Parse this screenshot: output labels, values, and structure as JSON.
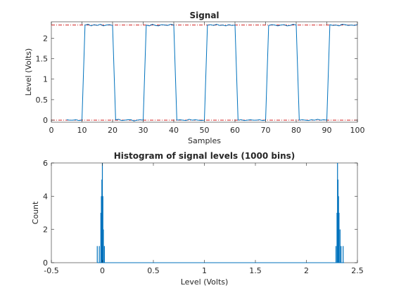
{
  "chart_data": [
    {
      "type": "line",
      "title": "Signal",
      "xlabel": "Samples",
      "ylabel": "Level (Volts)",
      "xlim": [
        0,
        100
      ],
      "ylim": [
        -0.05,
        2.4
      ],
      "xticks": [
        "0",
        "10",
        "20",
        "30",
        "40",
        "50",
        "60",
        "70",
        "80",
        "90",
        "100"
      ],
      "yticks": [
        "0",
        "0.5",
        "1",
        "1.5",
        "2"
      ],
      "grid": false,
      "series": [
        {
          "color": "#0072bd",
          "x": [
            5,
            6,
            7,
            8,
            9,
            10,
            11,
            12,
            13,
            14,
            15,
            16,
            17,
            18,
            19,
            20,
            21,
            22,
            23,
            24,
            25,
            26,
            27,
            28,
            29,
            30,
            31,
            32,
            33,
            34,
            35,
            36,
            37,
            38,
            39,
            40,
            41,
            42,
            43,
            44,
            45,
            46,
            47,
            48,
            49,
            50,
            51,
            52,
            53,
            54,
            55,
            56,
            57,
            58,
            59,
            60,
            61,
            62,
            63,
            64,
            65,
            66,
            67,
            68,
            69,
            70,
            71,
            72,
            73,
            74,
            75,
            76,
            77,
            78,
            79,
            80,
            81,
            82,
            83,
            84,
            85,
            86,
            87,
            88,
            89,
            90,
            91,
            92,
            93,
            94,
            95,
            96,
            97,
            98,
            99,
            100
          ],
          "y": [
            0.01,
            0.0,
            0.0,
            0.01,
            -0.01,
            0.0,
            2.32,
            2.34,
            2.3,
            2.33,
            2.31,
            2.34,
            2.3,
            2.32,
            2.33,
            2.31,
            0.01,
            0.02,
            -0.01,
            0.0,
            0.01,
            0.01,
            -0.02,
            0.0,
            0.01,
            0.0,
            2.32,
            2.3,
            2.34,
            2.31,
            2.3,
            2.33,
            2.32,
            2.31,
            2.34,
            2.32,
            0.0,
            0.01,
            0.0,
            -0.01,
            0.02,
            0.0,
            0.01,
            0.0,
            -0.01,
            0.0,
            2.32,
            2.33,
            2.31,
            2.34,
            2.31,
            2.32,
            2.3,
            2.33,
            2.31,
            2.32,
            0.0,
            0.01,
            -0.01,
            0.0,
            0.01,
            0.0,
            0.0,
            0.01,
            -0.01,
            0.0,
            2.31,
            2.33,
            2.32,
            2.3,
            2.32,
            2.33,
            2.3,
            2.31,
            2.34,
            2.32,
            0.0,
            0.01,
            0.0,
            -0.01,
            0.01,
            0.0,
            0.02,
            0.0,
            0.01,
            0.0,
            2.33,
            2.31,
            2.32,
            2.3,
            2.34,
            2.33,
            2.31,
            2.32,
            2.31,
            2.33
          ]
        }
      ],
      "reference_lines": [
        {
          "y": 2.32,
          "color": "#cc0000",
          "style": "dash-dot"
        },
        {
          "y": 0.0,
          "color": "#cc0000",
          "style": "dash-dot"
        }
      ]
    },
    {
      "type": "histogram",
      "title": "Histogram of signal levels (1000 bins)",
      "xlabel": "Level (Volts)",
      "ylabel": "Count",
      "xlim": [
        -0.5,
        2.5
      ],
      "ylim": [
        0,
        6
      ],
      "xticks": [
        "-0.5",
        "0",
        "0.5",
        "1",
        "1.5",
        "2",
        "2.5"
      ],
      "yticks": [
        "0",
        "2",
        "4",
        "6"
      ],
      "grid": false,
      "color": "#0072bd",
      "bins": [
        {
          "x": -0.05,
          "count": 1
        },
        {
          "x": -0.03,
          "count": 1
        },
        {
          "x": -0.015,
          "count": 3
        },
        {
          "x": -0.01,
          "count": 4
        },
        {
          "x": -0.005,
          "count": 5
        },
        {
          "x": 0.0,
          "count": 6
        },
        {
          "x": 0.005,
          "count": 4
        },
        {
          "x": 0.01,
          "count": 2
        },
        {
          "x": 0.02,
          "count": 1
        },
        {
          "x": 2.29,
          "count": 1
        },
        {
          "x": 2.3,
          "count": 3
        },
        {
          "x": 2.305,
          "count": 6
        },
        {
          "x": 2.31,
          "count": 5
        },
        {
          "x": 2.315,
          "count": 4
        },
        {
          "x": 2.32,
          "count": 3
        },
        {
          "x": 2.33,
          "count": 2
        },
        {
          "x": 2.34,
          "count": 1
        },
        {
          "x": 2.36,
          "count": 1
        }
      ]
    }
  ]
}
